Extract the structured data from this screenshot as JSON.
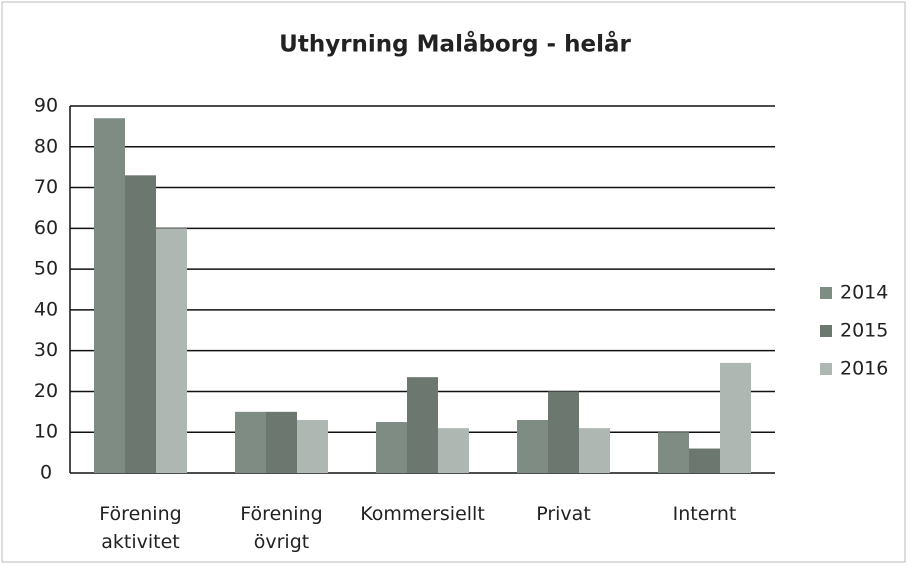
{
  "chart_data": {
    "type": "bar",
    "title": "Uthyrning Malåborg - helår",
    "categories": [
      "Förening aktivitet",
      "Förening övrigt",
      "Kommersiellt",
      "Privat",
      "Internt"
    ],
    "series": [
      {
        "name": "2014",
        "color": "#7f8c84",
        "values": [
          87,
          15,
          12.5,
          13,
          10
        ]
      },
      {
        "name": "2015",
        "color": "#6c7770",
        "values": [
          73,
          15,
          23.5,
          20,
          6
        ]
      },
      {
        "name": "2016",
        "color": "#aeb7b1",
        "values": [
          60,
          13,
          11,
          11,
          27
        ]
      }
    ],
    "ylim": [
      0,
      90
    ],
    "yticks": [
      0,
      10,
      20,
      30,
      40,
      50,
      60,
      70,
      80,
      90
    ],
    "grid": true,
    "legend": "right"
  }
}
